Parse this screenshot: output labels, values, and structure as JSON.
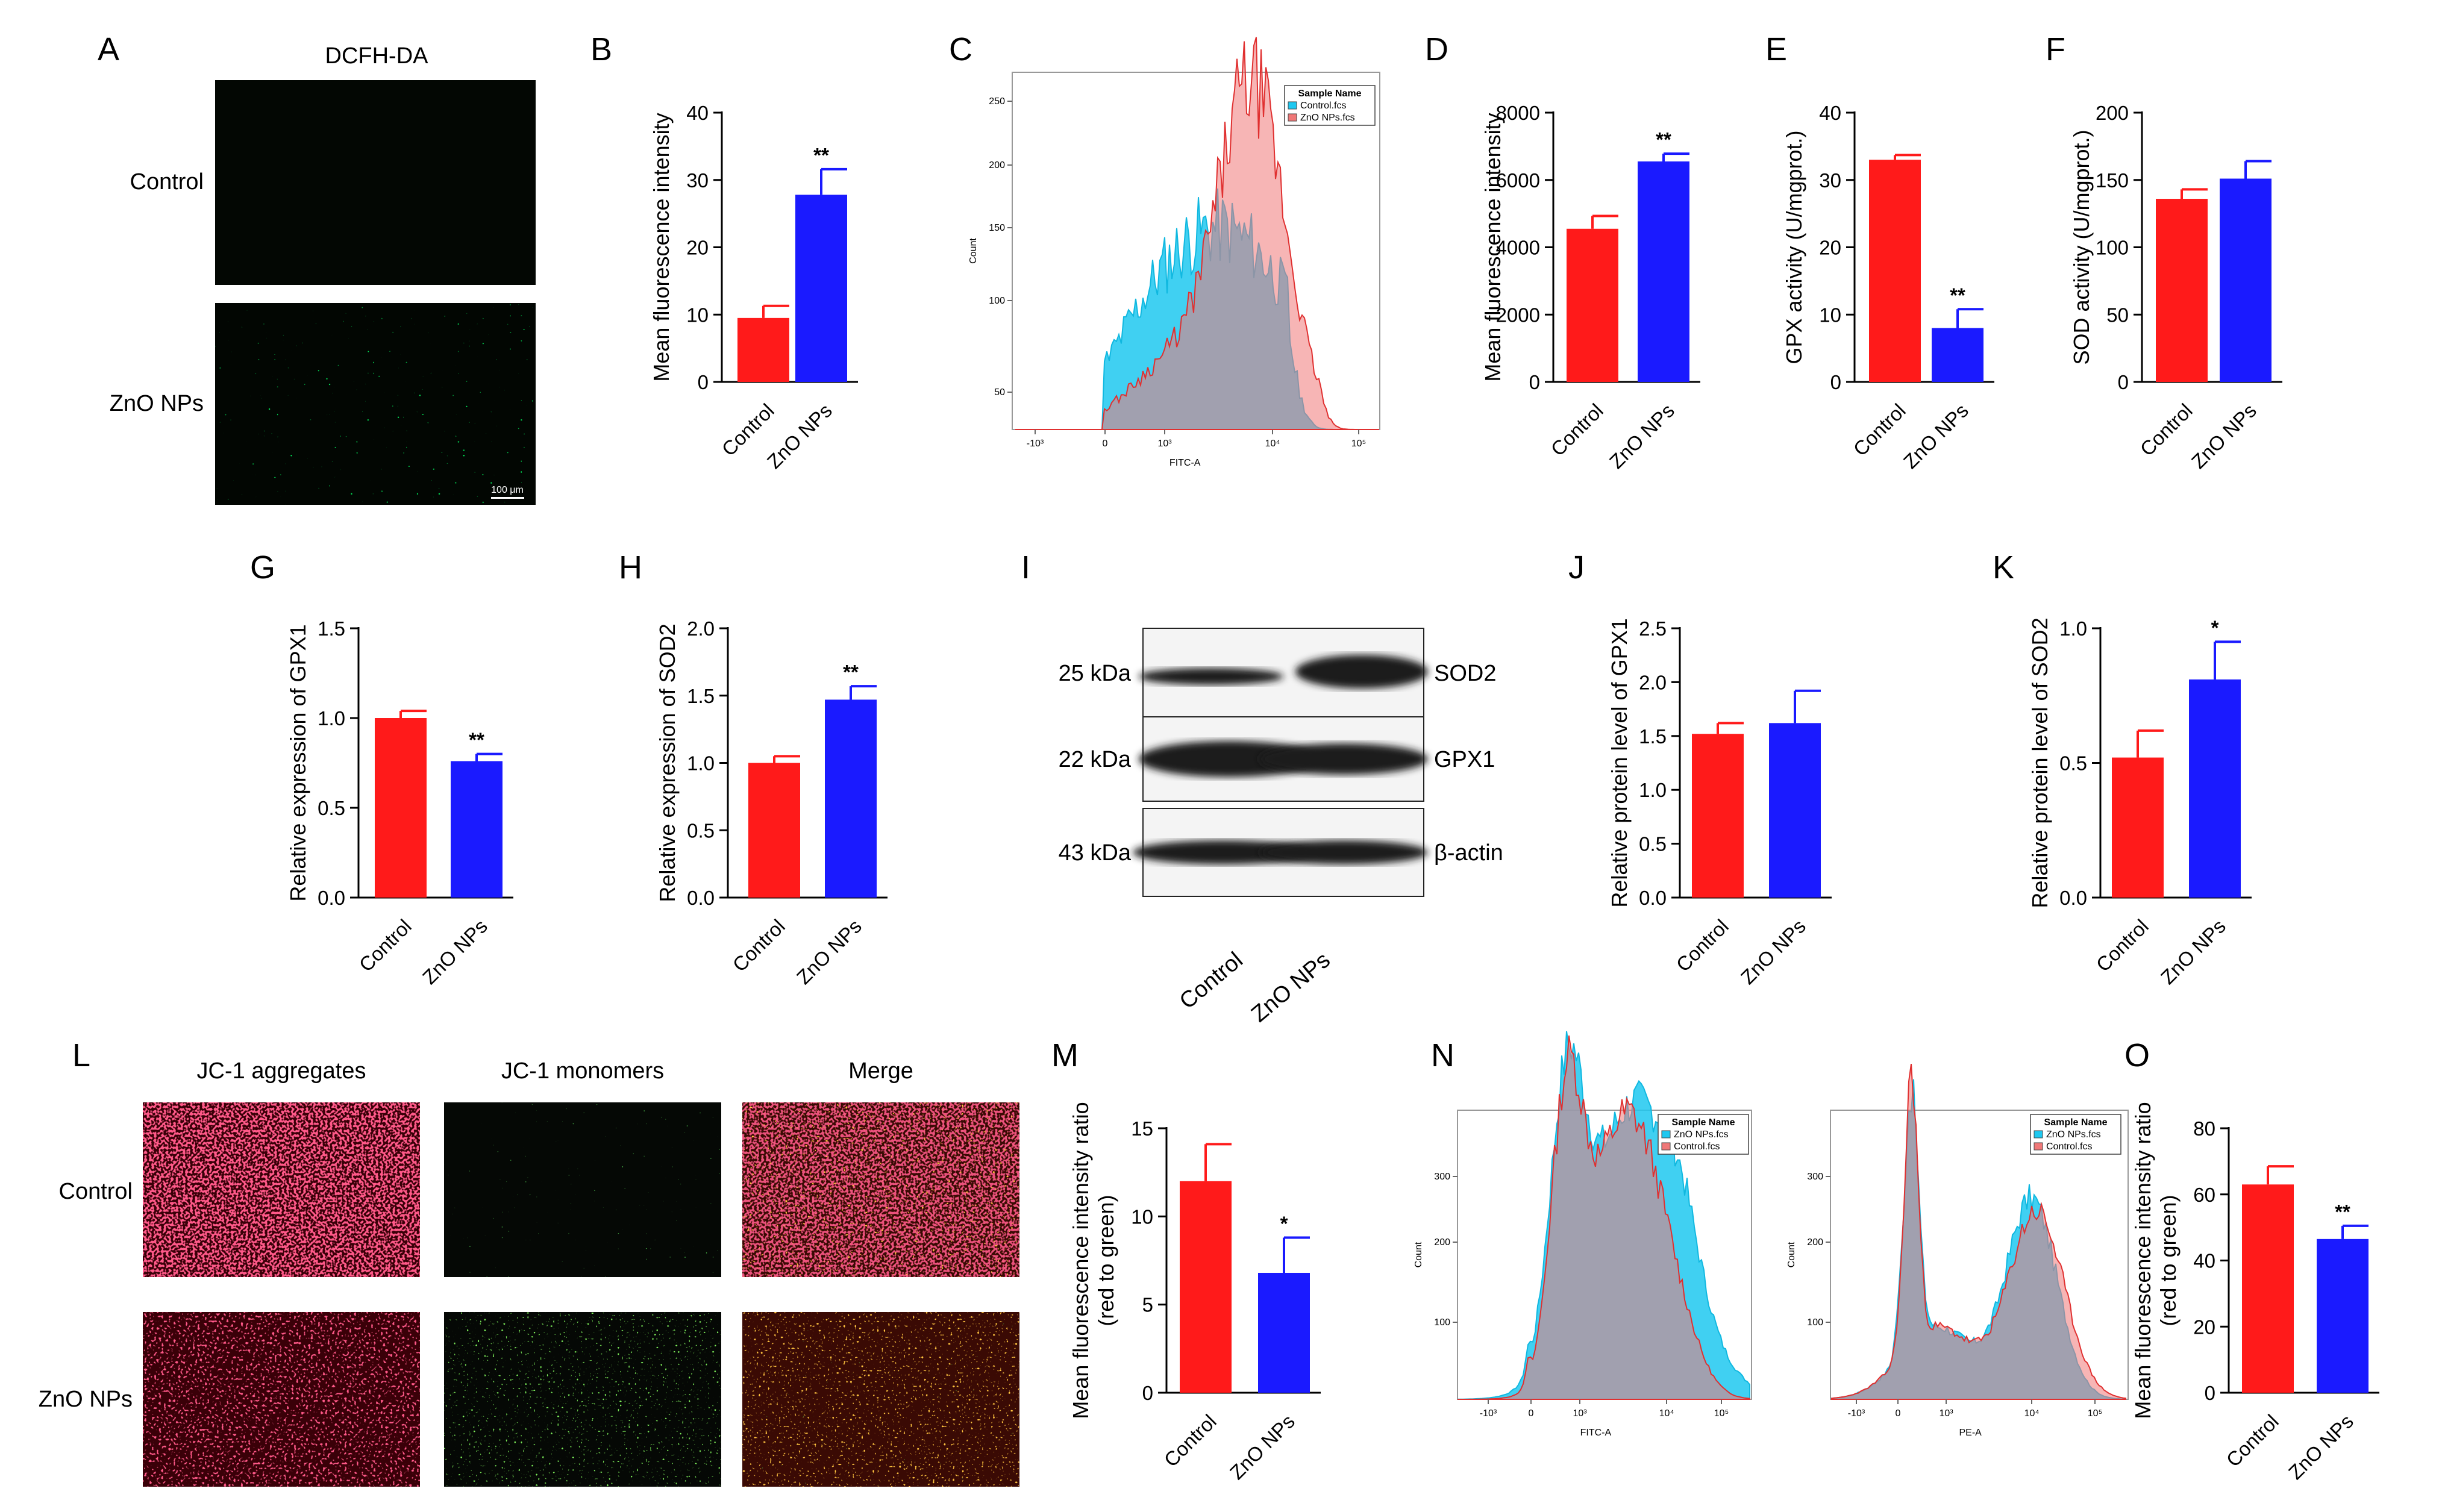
{
  "colors": {
    "control": "#ff1a1a",
    "treated": "#1a1aff",
    "hist_control": "#1ec8f0",
    "hist_treated": "#f07878",
    "overlap": "#6fa0b4"
  },
  "panels": {
    "A": {
      "letter": "A",
      "title": "DCFH-DA",
      "rows": [
        "Control",
        "ZnO NPs"
      ],
      "scalebar": "100 μm"
    },
    "C": {
      "letter": "C",
      "ylabel": "Count",
      "xlabel": "FITC-A",
      "legend_title": "Sample Name",
      "legend": [
        "Control.fcs",
        "ZnO NPs.fcs"
      ],
      "yticks": [
        "50",
        "100",
        "150",
        "200",
        "250"
      ],
      "xticks": [
        "-10³",
        "0",
        "10³",
        "10⁴",
        "10⁵"
      ]
    },
    "I": {
      "letter": "I",
      "bands": [
        {
          "kda": "25 kDa",
          "name": "SOD2"
        },
        {
          "kda": "22 kDa",
          "name": "GPX1"
        },
        {
          "kda": "43 kDa",
          "name": "β-actin"
        }
      ],
      "lanes": [
        "Control",
        "ZnO NPs"
      ]
    },
    "L": {
      "letter": "L",
      "cols": [
        "JC-1 aggregates",
        "JC-1 monomers",
        "Merge"
      ],
      "rows": [
        "Control",
        "ZnO NPs"
      ]
    },
    "N": {
      "letter": "N",
      "plots": [
        {
          "xlabel": "FITC-A",
          "ylabel": "Count",
          "legend_title": "Sample Name",
          "legend": [
            "ZnO NPs.fcs",
            "Control.fcs"
          ],
          "yticks": [
            "100",
            "200",
            "300"
          ],
          "xticks": [
            "-10³",
            "0",
            "10³",
            "10⁴",
            "10⁵"
          ]
        },
        {
          "xlabel": "PE-A",
          "ylabel": "Count",
          "legend_title": "Sample Name",
          "legend": [
            "ZnO NPs.fcs",
            "Control.fcs"
          ],
          "yticks": [
            "100",
            "200",
            "300"
          ],
          "xticks": [
            "-10³",
            "0",
            "10³",
            "10⁴",
            "10⁵"
          ]
        }
      ]
    }
  },
  "chart_data": [
    {
      "id": "B",
      "type": "bar",
      "categories": [
        "Control",
        "ZnO NPs"
      ],
      "values": [
        9.5,
        27.8
      ],
      "errors": [
        1.8,
        3.8
      ],
      "sig": [
        "",
        "**"
      ],
      "ylabel": "Mean fluorescence intensity",
      "ylabel_lines": [
        "Mean fluorescence intensity"
      ],
      "ylim": [
        0,
        40
      ],
      "yticks": [
        0,
        10,
        20,
        30,
        40
      ],
      "ytick_labels": [
        "0",
        "10",
        "20",
        "30",
        "40"
      ]
    },
    {
      "id": "D",
      "type": "bar",
      "categories": [
        "Control",
        "ZnO NPs"
      ],
      "values": [
        4550,
        6550
      ],
      "errors": [
        380,
        230
      ],
      "sig": [
        "",
        "**"
      ],
      "ylabel": "Mean fluorescence intensity",
      "ylabel_lines": [
        "Mean fluorescence intensity"
      ],
      "ylim": [
        0,
        8000
      ],
      "yticks": [
        0,
        2000,
        4000,
        6000,
        8000
      ],
      "ytick_labels": [
        "0",
        "2000",
        "4000",
        "6000",
        "8000"
      ]
    },
    {
      "id": "E",
      "type": "bar",
      "categories": [
        "Control",
        "ZnO NPs"
      ],
      "values": [
        33,
        8
      ],
      "errors": [
        0.7,
        2.8
      ],
      "sig": [
        "",
        "**"
      ],
      "ylabel": "GPX activity (U/mgprot.)",
      "ylabel_lines": [
        "GPX activity (U/mgprot.)"
      ],
      "ylim": [
        0,
        40
      ],
      "yticks": [
        0,
        10,
        20,
        30,
        40
      ],
      "ytick_labels": [
        "0",
        "10",
        "20",
        "30",
        "40"
      ]
    },
    {
      "id": "F",
      "type": "bar",
      "categories": [
        "Control",
        "ZnO NPs"
      ],
      "values": [
        136,
        151
      ],
      "errors": [
        7,
        13
      ],
      "sig": [
        "",
        ""
      ],
      "ylabel": "SOD activity (U/mgprot.)",
      "ylabel_lines": [
        "SOD activity (U/mgprot.)"
      ],
      "ylim": [
        0,
        200
      ],
      "yticks": [
        0,
        50,
        100,
        150,
        200
      ],
      "ytick_labels": [
        "0",
        "50",
        "100",
        "150",
        "200"
      ]
    },
    {
      "id": "G",
      "type": "bar",
      "categories": [
        "Control",
        "ZnO NPs"
      ],
      "values": [
        1.0,
        0.76
      ],
      "errors": [
        0.04,
        0.04
      ],
      "sig": [
        "",
        "**"
      ],
      "ylabel": "Relative expression of GPX1",
      "ylabel_lines": [
        "Relative expression of GPX1"
      ],
      "ylim": [
        0,
        1.5
      ],
      "yticks": [
        0,
        0.5,
        1,
        1.5
      ],
      "ytick_labels": [
        "0.0",
        "0.5",
        "1.0",
        "1.5"
      ]
    },
    {
      "id": "H",
      "type": "bar",
      "categories": [
        "Control",
        "ZnO NPs"
      ],
      "values": [
        1.0,
        1.47
      ],
      "errors": [
        0.05,
        0.1
      ],
      "sig": [
        "",
        "**"
      ],
      "ylabel": "Relative expression of SOD2",
      "ylabel_lines": [
        "Relative expression of SOD2"
      ],
      "ylim": [
        0,
        2
      ],
      "yticks": [
        0,
        0.5,
        1,
        1.5,
        2
      ],
      "ytick_labels": [
        "0.0",
        "0.5",
        "1.0",
        "1.5",
        "2.0"
      ]
    },
    {
      "id": "J",
      "type": "bar",
      "categories": [
        "Control",
        "ZnO NPs"
      ],
      "values": [
        1.52,
        1.62
      ],
      "errors": [
        0.1,
        0.3
      ],
      "sig": [
        "",
        ""
      ],
      "ylabel": "Relative protein level of GPX1",
      "ylabel_lines": [
        "Relative protein level of GPX1"
      ],
      "ylim": [
        0,
        2.5
      ],
      "yticks": [
        0,
        0.5,
        1,
        1.5,
        2,
        2.5
      ],
      "ytick_labels": [
        "0.0",
        "0.5",
        "1.0",
        "1.5",
        "2.0",
        "2.5"
      ]
    },
    {
      "id": "K",
      "type": "bar",
      "categories": [
        "Control",
        "ZnO NPs"
      ],
      "values": [
        0.52,
        0.81
      ],
      "errors": [
        0.1,
        0.14
      ],
      "sig": [
        "",
        "*"
      ],
      "ylabel": "Relative protein level of SOD2",
      "ylabel_lines": [
        "Relative protein level of SOD2"
      ],
      "ylim": [
        0,
        1
      ],
      "yticks": [
        0,
        0.5,
        1
      ],
      "ytick_labels": [
        "0.0",
        "0.5",
        "1.0"
      ]
    },
    {
      "id": "M",
      "type": "bar",
      "categories": [
        "Control",
        "ZnO NPs"
      ],
      "values": [
        12,
        6.8
      ],
      "errors": [
        2.1,
        2.0
      ],
      "sig": [
        "",
        "*"
      ],
      "ylabel": "Mean fluorescence intensity ratio (red to green)",
      "ylabel_lines": [
        "Mean fluorescence intensity ratio",
        "(red to green)"
      ],
      "ylim": [
        0,
        15
      ],
      "yticks": [
        0,
        5,
        10,
        15
      ],
      "ytick_labels": [
        "0",
        "5",
        "10",
        "15"
      ]
    },
    {
      "id": "O",
      "type": "bar",
      "categories": [
        "Control",
        "ZnO NPs"
      ],
      "values": [
        63,
        46.5
      ],
      "errors": [
        5.5,
        4
      ],
      "sig": [
        "",
        "**"
      ],
      "ylabel": "Mean fluorescence intensity ratio (red to green)",
      "ylabel_lines": [
        "Mean fluorescence intensity ratio",
        "(red to green)"
      ],
      "ylim": [
        0,
        80
      ],
      "yticks": [
        0,
        20,
        40,
        60,
        80
      ],
      "ytick_labels": [
        "0",
        "20",
        "40",
        "60",
        "80"
      ]
    }
  ]
}
